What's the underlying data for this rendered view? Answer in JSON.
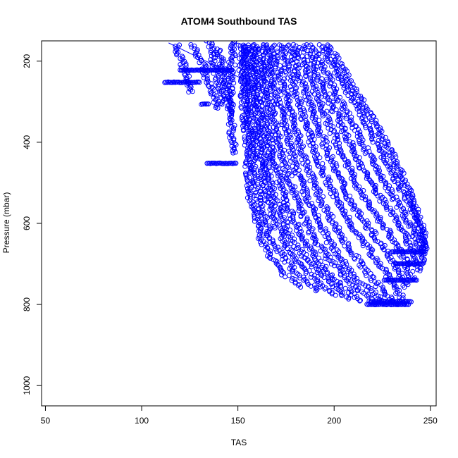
{
  "chart_data": {
    "type": "scatter",
    "title": "ATOM4 Southbound TAS",
    "xlabel": "TAS",
    "ylabel": "Pressure (mbar)",
    "xlim": [
      48,
      253
    ],
    "ylim": [
      1050,
      150
    ],
    "x_ticks": [
      50,
      100,
      150,
      200,
      250
    ],
    "y_ticks": [
      200,
      400,
      600,
      800,
      1000
    ],
    "grid": false,
    "marker": "open-circle",
    "series_color": "#0000ff",
    "profiles": [
      {
        "p": [
          160,
          250,
          350,
          450,
          550,
          650,
          720,
          760
        ],
        "x": [
          152,
          152,
          154,
          155,
          157,
          163,
          172,
          185
        ]
      },
      {
        "p": [
          160,
          250,
          350,
          450,
          550,
          650,
          720,
          770
        ],
        "x": [
          153,
          154,
          156,
          158,
          161,
          168,
          180,
          193
        ]
      },
      {
        "p": [
          160,
          250,
          350,
          450,
          550,
          650,
          720,
          780
        ],
        "x": [
          155,
          157,
          159,
          162,
          166,
          174,
          186,
          200
        ]
      },
      {
        "p": [
          160,
          250,
          350,
          450,
          550,
          650,
          720,
          790
        ],
        "x": [
          157,
          159,
          162,
          165,
          170,
          179,
          192,
          208
        ]
      },
      {
        "p": [
          160,
          250,
          350,
          450,
          550,
          650,
          730,
          795
        ],
        "x": [
          159,
          162,
          165,
          169,
          175,
          185,
          198,
          215
        ]
      },
      {
        "p": [
          160,
          250,
          350,
          450,
          550,
          650,
          730,
          800
        ],
        "x": [
          162,
          165,
          169,
          174,
          181,
          191,
          205,
          222
        ]
      },
      {
        "p": [
          160,
          250,
          350,
          450,
          550,
          650,
          740,
          800
        ],
        "x": [
          165,
          169,
          174,
          179,
          187,
          198,
          212,
          228
        ]
      },
      {
        "p": [
          160,
          250,
          350,
          450,
          550,
          650,
          740,
          800
        ],
        "x": [
          168,
          173,
          179,
          185,
          194,
          206,
          220,
          233
        ]
      },
      {
        "p": [
          160,
          250,
          350,
          450,
          550,
          640,
          720,
          790
        ],
        "x": [
          172,
          178,
          185,
          192,
          202,
          214,
          227,
          236
        ]
      },
      {
        "p": [
          160,
          250,
          350,
          450,
          550,
          630,
          700,
          760
        ],
        "x": [
          176,
          183,
          191,
          199,
          209,
          221,
          232,
          238
        ]
      },
      {
        "p": [
          160,
          250,
          350,
          450,
          540,
          620,
          690,
          740
        ],
        "x": [
          180,
          188,
          197,
          206,
          216,
          228,
          237,
          241
        ]
      },
      {
        "p": [
          160,
          250,
          350,
          450,
          530,
          600,
          670,
          720
        ],
        "x": [
          184,
          193,
          203,
          213,
          223,
          234,
          241,
          244
        ]
      },
      {
        "p": [
          160,
          250,
          350,
          440,
          520,
          590,
          650,
          700
        ],
        "x": [
          188,
          198,
          209,
          219,
          229,
          238,
          244,
          246
        ]
      },
      {
        "p": [
          160,
          240,
          330,
          420,
          500,
          570,
          630,
          680
        ],
        "x": [
          193,
          203,
          214,
          224,
          233,
          241,
          246,
          247
        ]
      },
      {
        "p": [
          160,
          240,
          320,
          400,
          480,
          560,
          620,
          670
        ],
        "x": [
          197,
          207,
          217,
          227,
          235,
          242,
          246,
          247
        ]
      },
      {
        "p": [
          150,
          200,
          260,
          320,
          380,
          430
        ],
        "x": [
          148,
          147,
          146,
          146,
          147,
          148
        ]
      },
      {
        "p": [
          150,
          190,
          230,
          270,
          310
        ],
        "x": [
          135,
          137,
          139,
          141,
          143
        ]
      },
      {
        "p": [
          160,
          200,
          240,
          280
        ],
        "x": [
          118,
          121,
          124,
          126
        ]
      },
      {
        "p": [
          170,
          210,
          250,
          290,
          330
        ],
        "x": [
          140,
          142,
          144,
          145,
          146
        ]
      },
      {
        "p": [
          160,
          200,
          240,
          280,
          320
        ],
        "x": [
          127,
          131,
          134,
          137,
          140
        ]
      }
    ],
    "flat_runs": [
      {
        "p": 222,
        "x": [
          120,
          147
        ]
      },
      {
        "p": 252,
        "x": [
          112,
          130
        ]
      },
      {
        "p": 306,
        "x": [
          131,
          135
        ]
      },
      {
        "p": 452,
        "x": [
          134,
          149
        ]
      },
      {
        "p": 793,
        "x": [
          219,
          240
        ]
      },
      {
        "p": 800,
        "x": [
          217,
          239
        ]
      },
      {
        "p": 670,
        "x": [
          230,
          247
        ]
      },
      {
        "p": 700,
        "x": [
          232,
          246
        ]
      },
      {
        "p": 740,
        "x": [
          226,
          243
        ]
      }
    ],
    "line_segment": {
      "x": [
        114,
        155
      ],
      "p": [
        155,
        250
      ]
    }
  }
}
